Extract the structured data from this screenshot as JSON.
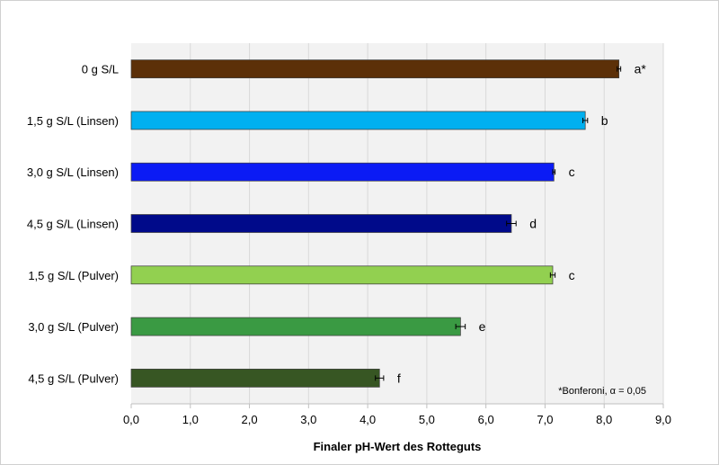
{
  "chart_data": {
    "type": "bar",
    "orientation": "horizontal",
    "categories": [
      "0 g S/L",
      "1,5 g S/L (Linsen)",
      "3,0 g S/L (Linsen)",
      "4,5 g S/L (Linsen)",
      "1,5 g S/L (Pulver)",
      "3,0 g S/L (Pulver)",
      "4,5 g S/L (Pulver)"
    ],
    "values": [
      8.25,
      7.68,
      7.15,
      6.43,
      7.13,
      5.57,
      4.2
    ],
    "errors": [
      0.03,
      0.04,
      0.02,
      0.08,
      0.04,
      0.08,
      0.07
    ],
    "significance_labels": [
      "a*",
      "b",
      "c",
      "d",
      "c",
      "e",
      "f"
    ],
    "colors": [
      "#5c3008",
      "#00b0f0",
      "#0b1bf5",
      "#000a8a",
      "#92d050",
      "#3a9a43",
      "#375623"
    ],
    "xlabel": "Finaler pH-Wert des Rotteguts",
    "xlim": [
      0,
      9
    ],
    "xticks": [
      "0,0",
      "1,0",
      "2,0",
      "3,0",
      "4,0",
      "5,0",
      "6,0",
      "7,0",
      "8,0",
      "9,0"
    ],
    "note": "*Bonferoni, α = 0,05",
    "plot_background": "#f2f2f2",
    "grid": "vertical"
  }
}
